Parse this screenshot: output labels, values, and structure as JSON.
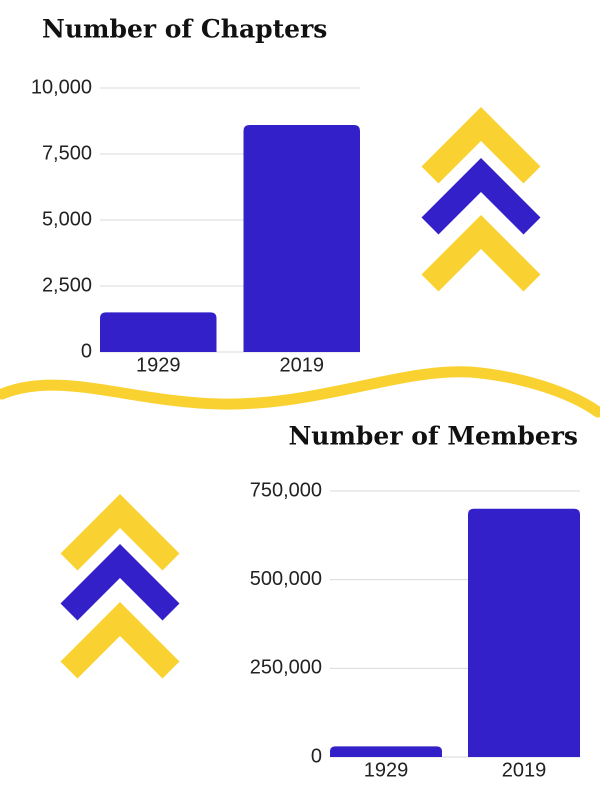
{
  "chart_data": [
    {
      "type": "bar",
      "title": "Number of Chapters",
      "categories": [
        "1929",
        "2019"
      ],
      "values": [
        1500,
        8600
      ],
      "color": "#3420c8",
      "ylim": [
        0,
        10000
      ],
      "yticks": [
        0,
        {
          "value": 2500,
          "label": "2,500"
        },
        {
          "value": 5000,
          "label": "5,000"
        },
        {
          "value": 7500,
          "label": "7,500"
        },
        {
          "value": 10000,
          "label": "10,000"
        }
      ],
      "grid": true
    },
    {
      "type": "bar",
      "title": "Number of Members",
      "categories": [
        "1929",
        "2019"
      ],
      "values": [
        30000,
        700000
      ],
      "color": "#3420c8",
      "ylim": [
        0,
        750000
      ],
      "yticks": [
        0,
        {
          "value": 250000,
          "label": "250,000"
        },
        {
          "value": 500000,
          "label": "500,000"
        },
        {
          "value": 750000,
          "label": "750,000"
        }
      ],
      "grid": true
    }
  ]
}
